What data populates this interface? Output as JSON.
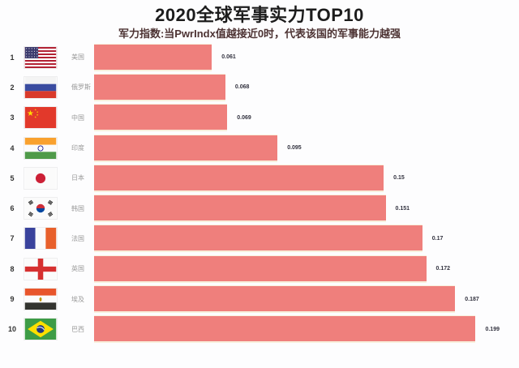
{
  "header": {
    "title": "2020全球军事实力TOP10",
    "subtitle": "军力指数:当PwrIndx值越接近0时，代表该国的军事能力越强"
  },
  "colors": {
    "bar": "#EF7F7C",
    "bar_separator": "#f8f0dd",
    "subtitle_text": "#4d3333",
    "country_text": "#9a9a9a",
    "value_text": "#32323f",
    "background": "#fdfdfe"
  },
  "chart_data": {
    "type": "bar",
    "orientation": "horizontal",
    "title": "2020全球军事实力TOP10",
    "subtitle": "军力指数:当PwrIndx值越接近0时，代表该国的军事能力越强",
    "xlabel": "",
    "ylabel": "",
    "xlim": [
      0,
      0.21
    ],
    "grid": false,
    "legend": "none",
    "value_axis_visible": false,
    "categories": [
      "美国",
      "俄罗斯",
      "中国",
      "印度",
      "日本",
      "韩国",
      "法国",
      "英国",
      "埃及",
      "巴西"
    ],
    "values": [
      0.061,
      0.068,
      0.069,
      0.095,
      0.15,
      0.151,
      0.17,
      0.172,
      0.187,
      0.199
    ],
    "rows": [
      {
        "rank": "1",
        "country": "美国",
        "flag": "usa",
        "value": 0.061,
        "value_label": "0.061"
      },
      {
        "rank": "2",
        "country": "俄罗斯",
        "flag": "russia",
        "value": 0.068,
        "value_label": "0.068"
      },
      {
        "rank": "3",
        "country": "中国",
        "flag": "china",
        "value": 0.069,
        "value_label": "0.069"
      },
      {
        "rank": "4",
        "country": "印度",
        "flag": "india",
        "value": 0.095,
        "value_label": "0.095"
      },
      {
        "rank": "5",
        "country": "日本",
        "flag": "japan",
        "value": 0.15,
        "value_label": "0.15"
      },
      {
        "rank": "6",
        "country": "韩国",
        "flag": "korea",
        "value": 0.151,
        "value_label": "0.151"
      },
      {
        "rank": "7",
        "country": "法国",
        "flag": "france",
        "value": 0.17,
        "value_label": "0.17"
      },
      {
        "rank": "8",
        "country": "英国",
        "flag": "england",
        "value": 0.172,
        "value_label": "0.172"
      },
      {
        "rank": "9",
        "country": "埃及",
        "flag": "egypt",
        "value": 0.187,
        "value_label": "0.187"
      },
      {
        "rank": "10",
        "country": "巴西",
        "flag": "brazil",
        "value": 0.199,
        "value_label": "0.199"
      }
    ]
  }
}
